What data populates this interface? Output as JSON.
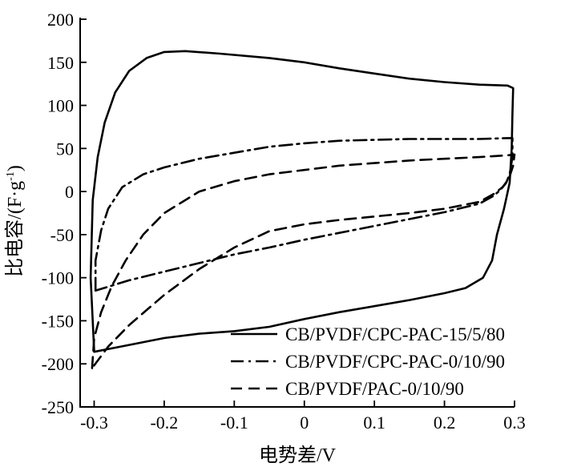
{
  "chart_data": {
    "type": "line",
    "xlabel": "电势差/V",
    "ylabel": "比电容/(F·g",
    "ylabel_superscript": "-1",
    "ylabel_suffix": ")",
    "xlim": [
      -0.32,
      0.3
    ],
    "ylim": [
      -250,
      200
    ],
    "x_ticks": [
      -0.3,
      -0.2,
      -0.1,
      0,
      0.1,
      0.2,
      0.3
    ],
    "x_tick_labels": [
      "-0.3",
      "-0.2",
      "-0.1",
      "0",
      "0.1",
      "0.2",
      "0.3"
    ],
    "y_ticks": [
      -250,
      -200,
      -150,
      -100,
      -50,
      0,
      50,
      100,
      150,
      200
    ],
    "y_tick_labels": [
      "-250",
      "-200",
      "-150",
      "-100",
      "-50",
      "0",
      "50",
      "100",
      "150",
      "200"
    ],
    "grid": false,
    "legend_position": "bottom-right",
    "series": [
      {
        "name": "CB/PVDF/CPC-PAC-15/5/80",
        "style": "solid",
        "color": "#000000",
        "points": [
          [
            -0.3,
            -185
          ],
          [
            -0.305,
            -100
          ],
          [
            -0.302,
            -10
          ],
          [
            -0.295,
            40
          ],
          [
            -0.285,
            80
          ],
          [
            -0.27,
            115
          ],
          [
            -0.25,
            140
          ],
          [
            -0.225,
            155
          ],
          [
            -0.2,
            162
          ],
          [
            -0.17,
            163
          ],
          [
            -0.12,
            160
          ],
          [
            -0.05,
            155
          ],
          [
            0.0,
            150
          ],
          [
            0.05,
            143
          ],
          [
            0.1,
            137
          ],
          [
            0.15,
            131
          ],
          [
            0.2,
            127
          ],
          [
            0.25,
            124
          ],
          [
            0.29,
            123
          ],
          [
            0.298,
            120
          ],
          [
            0.297,
            90
          ],
          [
            0.296,
            50
          ],
          [
            0.293,
            10
          ],
          [
            0.285,
            -20
          ],
          [
            0.275,
            -50
          ],
          [
            0.268,
            -80
          ],
          [
            0.255,
            -100
          ],
          [
            0.23,
            -112
          ],
          [
            0.2,
            -118
          ],
          [
            0.15,
            -126
          ],
          [
            0.1,
            -133
          ],
          [
            0.05,
            -140
          ],
          [
            0.0,
            -148
          ],
          [
            -0.05,
            -157
          ],
          [
            -0.1,
            -162
          ],
          [
            -0.15,
            -165
          ],
          [
            -0.2,
            -170
          ],
          [
            -0.25,
            -178
          ],
          [
            -0.3,
            -186
          ]
        ]
      },
      {
        "name": "CB/PVDF/CPC-PAC-0/10/90",
        "style": "dashdot",
        "color": "#000000",
        "points": [
          [
            -0.298,
            -115
          ],
          [
            -0.298,
            -80
          ],
          [
            -0.29,
            -45
          ],
          [
            -0.28,
            -20
          ],
          [
            -0.26,
            5
          ],
          [
            -0.23,
            20
          ],
          [
            -0.2,
            28
          ],
          [
            -0.15,
            38
          ],
          [
            -0.1,
            45
          ],
          [
            -0.05,
            52
          ],
          [
            0.0,
            56
          ],
          [
            0.05,
            59
          ],
          [
            0.1,
            60
          ],
          [
            0.15,
            61
          ],
          [
            0.2,
            61
          ],
          [
            0.25,
            61
          ],
          [
            0.29,
            62
          ],
          [
            0.297,
            62
          ],
          [
            0.297,
            40
          ],
          [
            0.293,
            20
          ],
          [
            0.288,
            10
          ],
          [
            0.28,
            2
          ],
          [
            0.27,
            -5
          ],
          [
            0.25,
            -14
          ],
          [
            0.2,
            -24
          ],
          [
            0.15,
            -32
          ],
          [
            0.1,
            -40
          ],
          [
            0.05,
            -48
          ],
          [
            0.0,
            -56
          ],
          [
            -0.05,
            -65
          ],
          [
            -0.1,
            -73
          ],
          [
            -0.15,
            -83
          ],
          [
            -0.2,
            -93
          ],
          [
            -0.25,
            -103
          ],
          [
            -0.298,
            -115
          ]
        ]
      },
      {
        "name": "CB/PVDF/PAC-0/10/90",
        "style": "dashed",
        "color": "#000000",
        "points": [
          [
            -0.303,
            -205
          ],
          [
            -0.3,
            -170
          ],
          [
            -0.29,
            -140
          ],
          [
            -0.275,
            -110
          ],
          [
            -0.255,
            -80
          ],
          [
            -0.23,
            -50
          ],
          [
            -0.2,
            -25
          ],
          [
            -0.15,
            0
          ],
          [
            -0.1,
            12
          ],
          [
            -0.05,
            20
          ],
          [
            0.0,
            25
          ],
          [
            0.05,
            30
          ],
          [
            0.1,
            33
          ],
          [
            0.15,
            36
          ],
          [
            0.2,
            38
          ],
          [
            0.25,
            40
          ],
          [
            0.29,
            42
          ],
          [
            0.3,
            43
          ],
          [
            0.298,
            30
          ],
          [
            0.292,
            15
          ],
          [
            0.283,
            5
          ],
          [
            0.27,
            -3
          ],
          [
            0.25,
            -12
          ],
          [
            0.2,
            -20
          ],
          [
            0.15,
            -25
          ],
          [
            0.1,
            -29
          ],
          [
            0.05,
            -33
          ],
          [
            0.0,
            -38
          ],
          [
            -0.05,
            -46
          ],
          [
            -0.1,
            -65
          ],
          [
            -0.15,
            -90
          ],
          [
            -0.2,
            -120
          ],
          [
            -0.25,
            -155
          ],
          [
            -0.28,
            -180
          ],
          [
            -0.303,
            -205
          ]
        ]
      }
    ]
  }
}
